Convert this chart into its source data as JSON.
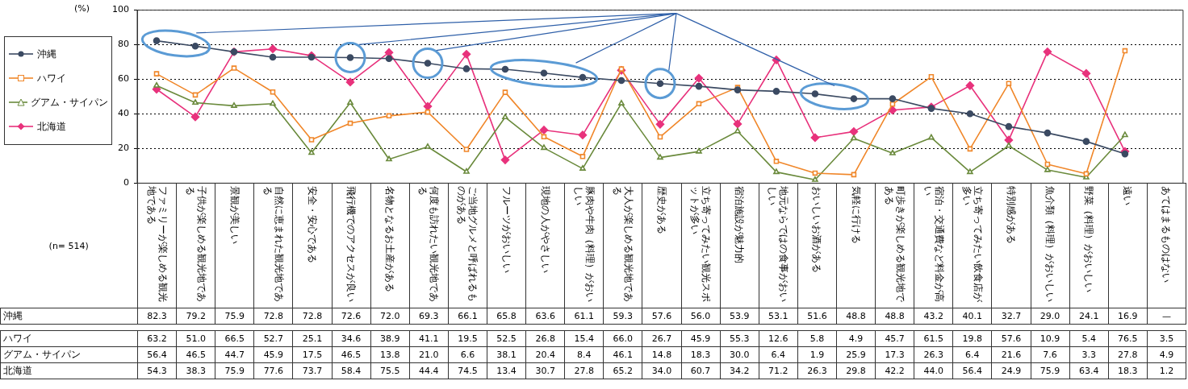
{
  "chart_data": {
    "type": "line",
    "ylabel": "(%)",
    "annotations": [
      "(n= 514)"
    ],
    "categories": [
      "ファミリーが楽しめる観光地である",
      "子供が楽しめる観光地である",
      "景観が美しい",
      "自然に恵まれた観光地である",
      "安全・安心である",
      "飛行機でのアクセスが良い",
      "名物となるお土産がある",
      "何度も訪れたい観光地である",
      "ご当地グルメと呼ばれるものがある",
      "フルーツがおいしい",
      "現地の人がやさしい",
      "豚肉や牛肉（料理）がおいしい",
      "大人が楽しめる観光地である",
      "歴史がある",
      "立ち寄ってみたい観光スポットが多い",
      "宿泊施設が魅力的",
      "地元ならではの食事がおいしい",
      "おいしいお酒がある",
      "気軽に行ける",
      "町歩きが楽しめる観光地である",
      "宿泊・交通費など料金が高い",
      "立ち寄ってみたい飲食店が多い",
      "特別感がある",
      "魚介類（料理）がおいしい",
      "野菜（料理）がおいしい",
      "遠い",
      "あてはまるものはない"
    ],
    "ylim": [
      0,
      100
    ],
    "yticks": [
      0,
      20,
      40,
      60,
      80,
      100
    ],
    "grid": "y",
    "legend": "left",
    "series": [
      {
        "name": "沖縄",
        "color": "#3b4a62",
        "marker": "circle",
        "values": [
          82.3,
          79.2,
          75.9,
          72.8,
          72.8,
          72.6,
          72.0,
          69.3,
          66.1,
          65.8,
          63.6,
          61.1,
          59.3,
          57.6,
          56.0,
          53.9,
          53.1,
          51.6,
          48.8,
          48.8,
          43.2,
          40.1,
          32.7,
          29.0,
          24.1,
          16.9,
          null
        ],
        "value_labels": [
          "82.3",
          "79.2",
          "75.9",
          "72.8",
          "72.8",
          "72.6",
          "72.0",
          "69.3",
          "66.1",
          "65.8",
          "63.6",
          "61.1",
          "59.3",
          "57.6",
          "56.0",
          "53.9",
          "53.1",
          "51.6",
          "48.8",
          "48.8",
          "43.2",
          "40.1",
          "32.7",
          "29.0",
          "24.1",
          "16.9",
          "—"
        ]
      },
      {
        "name": "ハワイ",
        "color": "#f0872a",
        "marker": "square",
        "values": [
          63.2,
          51.0,
          66.5,
          52.7,
          25.1,
          34.6,
          38.9,
          41.1,
          19.5,
          52.5,
          26.8,
          15.4,
          66.0,
          26.7,
          45.9,
          55.3,
          12.6,
          5.8,
          4.9,
          45.7,
          61.5,
          19.8,
          57.6,
          10.9,
          5.4,
          76.5,
          null
        ],
        "value_labels": [
          "63.2",
          "51.0",
          "66.5",
          "52.7",
          "25.1",
          "34.6",
          "38.9",
          "41.1",
          "19.5",
          "52.5",
          "26.8",
          "15.4",
          "66.0",
          "26.7",
          "45.9",
          "55.3",
          "12.6",
          "5.8",
          "4.9",
          "45.7",
          "61.5",
          "19.8",
          "57.6",
          "10.9",
          "5.4",
          "76.5",
          "3.5"
        ]
      },
      {
        "name": "グアム・サイパン",
        "color": "#6a8a3c",
        "marker": "triangle",
        "values": [
          56.4,
          46.5,
          44.7,
          45.9,
          17.5,
          46.5,
          13.8,
          21.0,
          6.6,
          38.1,
          20.4,
          8.4,
          46.1,
          14.8,
          18.3,
          30.0,
          6.4,
          1.9,
          25.9,
          17.3,
          26.3,
          6.4,
          21.6,
          7.6,
          3.3,
          27.8,
          null
        ],
        "value_labels": [
          "56.4",
          "46.5",
          "44.7",
          "45.9",
          "17.5",
          "46.5",
          "13.8",
          "21.0",
          "6.6",
          "38.1",
          "20.4",
          "8.4",
          "46.1",
          "14.8",
          "18.3",
          "30.0",
          "6.4",
          "1.9",
          "25.9",
          "17.3",
          "26.3",
          "6.4",
          "21.6",
          "7.6",
          "3.3",
          "27.8",
          "4.9"
        ]
      },
      {
        "name": "北海道",
        "color": "#e8327c",
        "marker": "diamond",
        "values": [
          54.3,
          38.3,
          75.9,
          77.6,
          73.7,
          58.4,
          75.5,
          44.4,
          74.5,
          13.4,
          30.7,
          27.8,
          65.2,
          34.0,
          60.7,
          34.2,
          71.2,
          26.3,
          29.8,
          42.2,
          44.0,
          56.4,
          24.9,
          75.9,
          63.4,
          18.3,
          null
        ],
        "value_labels": [
          "54.3",
          "38.3",
          "75.9",
          "77.6",
          "73.7",
          "58.4",
          "75.5",
          "44.4",
          "74.5",
          "13.4",
          "30.7",
          "27.8",
          "65.2",
          "34.0",
          "60.7",
          "34.2",
          "71.2",
          "26.3",
          "29.8",
          "42.2",
          "44.0",
          "56.4",
          "24.9",
          "75.9",
          "63.4",
          "18.3",
          "1.2"
        ]
      }
    ]
  }
}
